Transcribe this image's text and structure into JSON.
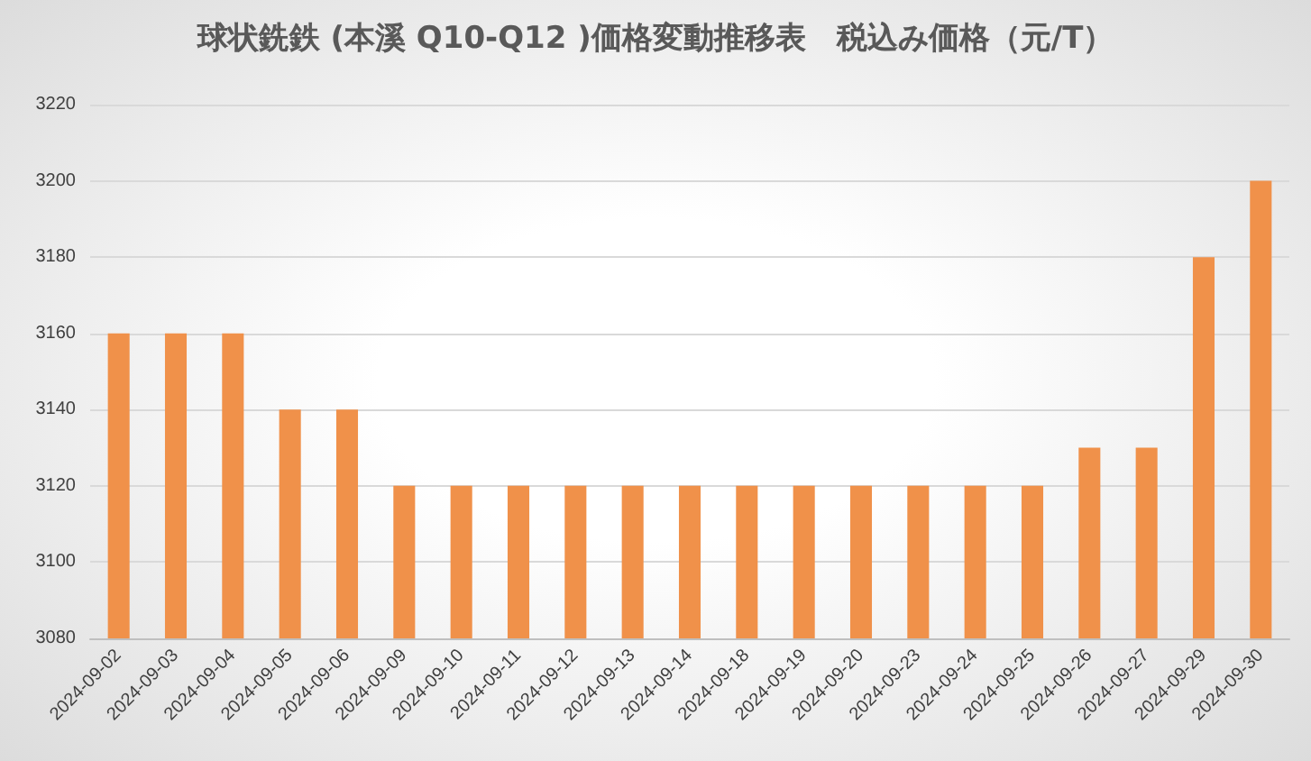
{
  "chart_data": {
    "type": "bar",
    "title": "球状銑鉄 (本溪 Q10-Q12 )価格変動推移表　税込み価格（元/T）",
    "categories": [
      "2024-09-02",
      "2024-09-03",
      "2024-09-04",
      "2024-09-05",
      "2024-09-06",
      "2024-09-09",
      "2024-09-10",
      "2024-09-11",
      "2024-09-12",
      "2024-09-13",
      "2024-09-14",
      "2024-09-18",
      "2024-09-19",
      "2024-09-20",
      "2024-09-23",
      "2024-09-24",
      "2024-09-25",
      "2024-09-26",
      "2024-09-27",
      "2024-09-29",
      "2024-09-30"
    ],
    "values": [
      3160,
      3160,
      3160,
      3140,
      3140,
      3120,
      3120,
      3120,
      3120,
      3120,
      3120,
      3120,
      3120,
      3120,
      3120,
      3120,
      3120,
      3130,
      3130,
      3180,
      3200
    ],
    "color": "#f0914a",
    "ylim": [
      3080,
      3220
    ],
    "yticks": [
      3080,
      3100,
      3120,
      3140,
      3160,
      3180,
      3200,
      3220
    ],
    "grid": "y"
  }
}
